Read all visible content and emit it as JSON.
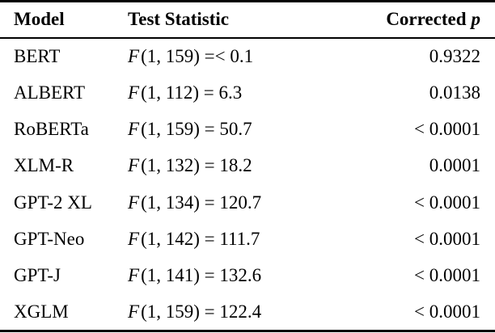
{
  "table": {
    "header": {
      "model": "Model",
      "test_statistic": "Test Statistic",
      "corrected": "Corrected",
      "p_symbol": "p"
    },
    "rows": [
      {
        "model": "BERT",
        "f": "F",
        "stat": "(1, 159) =< 0.1",
        "p": "0.9322"
      },
      {
        "model": "ALBERT",
        "f": "F",
        "stat": "(1, 112) = 6.3",
        "p": "0.0138"
      },
      {
        "model": "RoBERTa",
        "f": "F",
        "stat": "(1, 159) = 50.7",
        "p": "< 0.0001"
      },
      {
        "model": "XLM-R",
        "f": "F",
        "stat": "(1, 132) = 18.2",
        "p": "0.0001"
      },
      {
        "model": "GPT-2 XL",
        "f": "F",
        "stat": "(1, 134) = 120.7",
        "p": "< 0.0001"
      },
      {
        "model": "GPT-Neo",
        "f": "F",
        "stat": "(1, 142) = 111.7",
        "p": "< 0.0001"
      },
      {
        "model": "GPT-J",
        "f": "F",
        "stat": "(1, 141) = 132.6",
        "p": "< 0.0001"
      },
      {
        "model": "XGLM",
        "f": "F",
        "stat": "(1, 159) = 122.4",
        "p": "< 0.0001"
      }
    ]
  },
  "chart_data": {
    "type": "table",
    "columns": [
      "Model",
      "Test Statistic",
      "Corrected p"
    ],
    "rows": [
      [
        "BERT",
        "F(1, 159) =< 0.1",
        "0.9322"
      ],
      [
        "ALBERT",
        "F(1, 112) = 6.3",
        "0.0138"
      ],
      [
        "RoBERTa",
        "F(1, 159) = 50.7",
        "< 0.0001"
      ],
      [
        "XLM-R",
        "F(1, 132) = 18.2",
        "0.0001"
      ],
      [
        "GPT-2 XL",
        "F(1, 134) = 120.7",
        "< 0.0001"
      ],
      [
        "GPT-Neo",
        "F(1, 142) = 111.7",
        "< 0.0001"
      ],
      [
        "GPT-J",
        "F(1, 141) = 132.6",
        "< 0.0001"
      ],
      [
        "XGLM",
        "F(1, 159) = 122.4",
        "< 0.0001"
      ]
    ]
  }
}
